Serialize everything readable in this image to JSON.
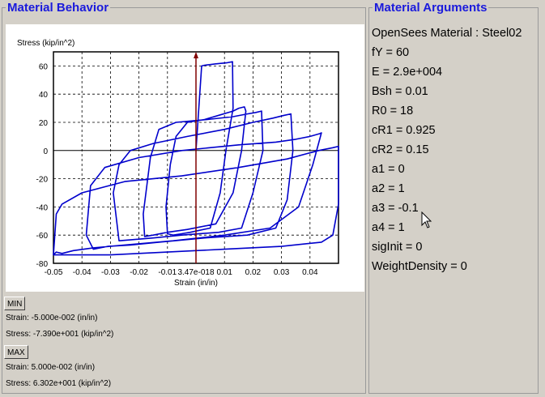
{
  "left_panel": {
    "title": "Material Behavior",
    "min_button": "MIN",
    "min_strain": "Strain: -5.000e-002 (in/in)",
    "min_stress": "Stress: -7.390e+001 (kip/in^2)",
    "max_button": "MAX",
    "max_strain": "Strain: 5.000e-002 (in/in)",
    "max_stress": "Stress: 6.302e+001 (kip/in^2)"
  },
  "right_panel": {
    "title": "Material Arguments",
    "args": [
      "OpenSees Material : Steel02",
      "fY = 60",
      "E = 2.9e+004",
      "Bsh = 0.01",
      "R0 = 18",
      "cR1 = 0.925",
      "cR2 = 0.15",
      "a1 = 0",
      "a2 = 1",
      "a3 = -0.1",
      "a4 = 1",
      "sigInit = 0",
      "WeightDensity = 0"
    ]
  },
  "colors": {
    "title_blue": "#1a1adc",
    "curve_blue": "#0000cc",
    "marker_dark_red": "#800000",
    "panel_bg": "#d4d0c8"
  },
  "chart_data": {
    "type": "line",
    "ylabel": "Stress (kip/in^2)",
    "xlabel": "Strain (in/in)",
    "xlim": [
      -0.05,
      0.05
    ],
    "ylim": [
      -80,
      70
    ],
    "x_tick_labels": [
      "-0.05",
      "-0.04",
      "-0.03",
      "-0.02",
      "-0.01",
      "3.47e-018",
      "0.01",
      "0.02",
      "0.03",
      "0.04"
    ],
    "x_tick_values": [
      -0.05,
      -0.04,
      -0.03,
      -0.02,
      -0.01,
      0,
      0.01,
      0.02,
      0.03,
      0.04
    ],
    "y_tick_labels": [
      "60",
      "40",
      "20",
      "0",
      "-20",
      "-40",
      "-60",
      "-80"
    ],
    "y_tick_values": [
      60,
      40,
      20,
      0,
      -20,
      -40,
      -60,
      -80
    ],
    "grid": true,
    "current_strain_marker": 0,
    "series": [
      {
        "x": [
          0,
          0.002,
          0.003,
          0.005,
          0.007,
          0.011,
          0.0128,
          0.013,
          0.0105,
          0.0085,
          0.005,
          -0.002,
          -0.005,
          -0.008,
          -0.01,
          -0.0105,
          -0.009,
          -0.007,
          -0.003,
          0.003,
          0.008,
          0.013,
          0.015,
          0.017,
          0.0175,
          0.016,
          0.013,
          0.007,
          -0.003,
          -0.01,
          -0.015,
          -0.018,
          -0.0185,
          -0.016,
          -0.013,
          -0.007,
          0.004,
          0.013,
          0.018,
          0.021,
          0.023,
          0.0235,
          0.02,
          0.016,
          0.008,
          -0.005,
          -0.015,
          -0.021,
          -0.027,
          -0.029,
          -0.027,
          -0.023,
          -0.015,
          -0.003,
          0.01,
          0.02,
          0.027,
          0.031,
          0.0333,
          0.034,
          0.032,
          0.028,
          0.018,
          0.003,
          -0.013,
          -0.023,
          -0.031,
          -0.036,
          -0.0385,
          -0.037,
          -0.032,
          -0.02,
          -0.005,
          0.015,
          0.028,
          0.035,
          0.04,
          0.0435,
          0.044,
          0.041,
          0.036,
          0.026,
          0.01,
          -0.008,
          -0.025,
          -0.036,
          -0.043,
          -0.047,
          -0.049,
          -0.05,
          -0.049,
          -0.047,
          -0.04,
          -0.025,
          -0.005,
          0.015,
          0.032,
          0.043,
          0.048,
          0.05,
          0.05,
          0.048,
          0.044,
          0.03,
          0.01,
          -0.01,
          -0.03,
          -0.05
        ],
        "y": [
          0,
          60,
          60.5,
          61,
          61.5,
          62.3,
          63,
          30,
          0,
          -30,
          -55,
          -58,
          -59,
          -60,
          -59,
          -40,
          -10,
          10,
          20,
          22,
          25,
          28,
          30,
          31,
          28,
          0,
          -30,
          -52,
          -56,
          -58,
          -60,
          -61,
          -45,
          -5,
          15,
          20,
          22,
          24,
          26,
          27,
          28,
          0,
          -30,
          -55,
          -58,
          -60,
          -62,
          -63,
          -64,
          -30,
          -10,
          0,
          5,
          10,
          15,
          20,
          23,
          25,
          26,
          0,
          -35,
          -55,
          -60,
          -62,
          -65,
          -67,
          -68,
          -70,
          -60,
          -25,
          -12,
          -5,
          0,
          4,
          6,
          8,
          10,
          12,
          12.5,
          -10,
          -40,
          -55,
          -60,
          -64,
          -67,
          -69,
          -71,
          -73,
          -72,
          -74,
          -45,
          -38,
          -30,
          -22,
          -18,
          -12,
          -6,
          0,
          2,
          3,
          -38,
          -60,
          -65,
          -68,
          -70,
          -72,
          -74,
          -74
        ]
      }
    ]
  }
}
